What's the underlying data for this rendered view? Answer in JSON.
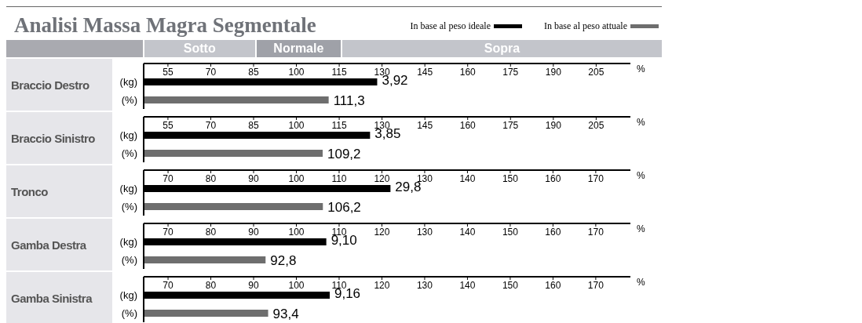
{
  "chart_data": [
    {
      "type": "bar",
      "orientation": "horizontal",
      "stacked": true,
      "title": "Analisi Massa Magra Segmentale",
      "annotations": [
        "Sotto",
        "Normale",
        "Sopra",
        {
          "text": "3,92",
          "x": 128.3,
          "y": "(kg)"
        }
      ],
      "legend": "top right",
      "ylabel": "Braccio Destro",
      "xlabel": "%",
      "categories": [
        "(kg)",
        "(%)"
      ],
      "xlim": [
        46.5,
        217
      ],
      "xticks": [
        55,
        70,
        85,
        100,
        115,
        130,
        145,
        160,
        175,
        190,
        205
      ],
      "series": [
        {
          "name": "In base al peso ideale",
          "color": "#000000",
          "values": [
            128.3,
            null
          ]
        },
        {
          "name": "In base al peso attuale",
          "color": "#6e6e6e",
          "values": [
            null,
            111.3
          ],
          "value_labels": [
            null,
            "111,3"
          ]
        }
      ]
    },
    {
      "type": "bar",
      "orientation": "horizontal",
      "stacked": true,
      "ylabel": "Braccio Sinistro",
      "annotations": [
        {
          "text": "3,85",
          "x": 125.8,
          "y": "(kg)"
        }
      ],
      "xlabel": "%",
      "categories": [
        "(kg)",
        "(%)"
      ],
      "xlim": [
        46.5,
        217
      ],
      "xticks": [
        55,
        70,
        85,
        100,
        115,
        130,
        145,
        160,
        175,
        190,
        205
      ],
      "series": [
        {
          "color": "#000000",
          "values": [
            125.8,
            null
          ]
        },
        {
          "color": "#6e6e6e",
          "values": [
            null,
            109.2
          ],
          "value_labels": [
            null,
            "109,2"
          ]
        }
      ]
    },
    {
      "type": "bar",
      "orientation": "horizontal",
      "stacked": true,
      "ylabel": "Tronco",
      "annotations": [
        {
          "text": "29,8",
          "x": 122.0,
          "y": "(kg)"
        }
      ],
      "xlabel": "%",
      "categories": [
        "(kg)",
        "(%)"
      ],
      "xlim": [
        64.3,
        178.1
      ],
      "xticks": [
        70,
        80,
        90,
        100,
        110,
        120,
        130,
        140,
        150,
        160,
        170
      ],
      "series": [
        {
          "color": "#000000",
          "values": [
            122.0,
            null
          ]
        },
        {
          "color": "#6e6e6e",
          "values": [
            null,
            106.2
          ],
          "value_labels": [
            null,
            "106,2"
          ]
        }
      ]
    },
    {
      "type": "bar",
      "orientation": "horizontal",
      "stacked": true,
      "ylabel": "Gamba Destra",
      "annotations": [
        {
          "text": "9,10",
          "x": 107.0,
          "y": "(kg)"
        }
      ],
      "xlabel": "%",
      "categories": [
        "(kg)",
        "(%)"
      ],
      "xlim": [
        64.3,
        178.1
      ],
      "xticks": [
        70,
        80,
        90,
        100,
        110,
        120,
        130,
        140,
        150,
        160,
        170
      ],
      "series": [
        {
          "color": "#000000",
          "values": [
            107.0,
            null
          ]
        },
        {
          "color": "#6e6e6e",
          "values": [
            null,
            92.8
          ],
          "value_labels": [
            null,
            "92,8"
          ]
        }
      ]
    },
    {
      "type": "bar",
      "orientation": "horizontal",
      "stacked": true,
      "ylabel": "Gamba Sinistra",
      "annotations": [
        {
          "text": "9,16",
          "x": 107.8,
          "y": "(kg)"
        }
      ],
      "xlabel": "%",
      "categories": [
        "(kg)",
        "(%)"
      ],
      "xlim": [
        64.3,
        178.1
      ],
      "xticks": [
        70,
        80,
        90,
        100,
        110,
        120,
        130,
        140,
        150,
        160,
        170
      ],
      "series": [
        {
          "color": "#000000",
          "values": [
            107.8,
            null
          ]
        },
        {
          "color": "#6e6e6e",
          "values": [
            null,
            93.4
          ],
          "value_labels": [
            null,
            "93,4"
          ]
        }
      ]
    }
  ]
}
